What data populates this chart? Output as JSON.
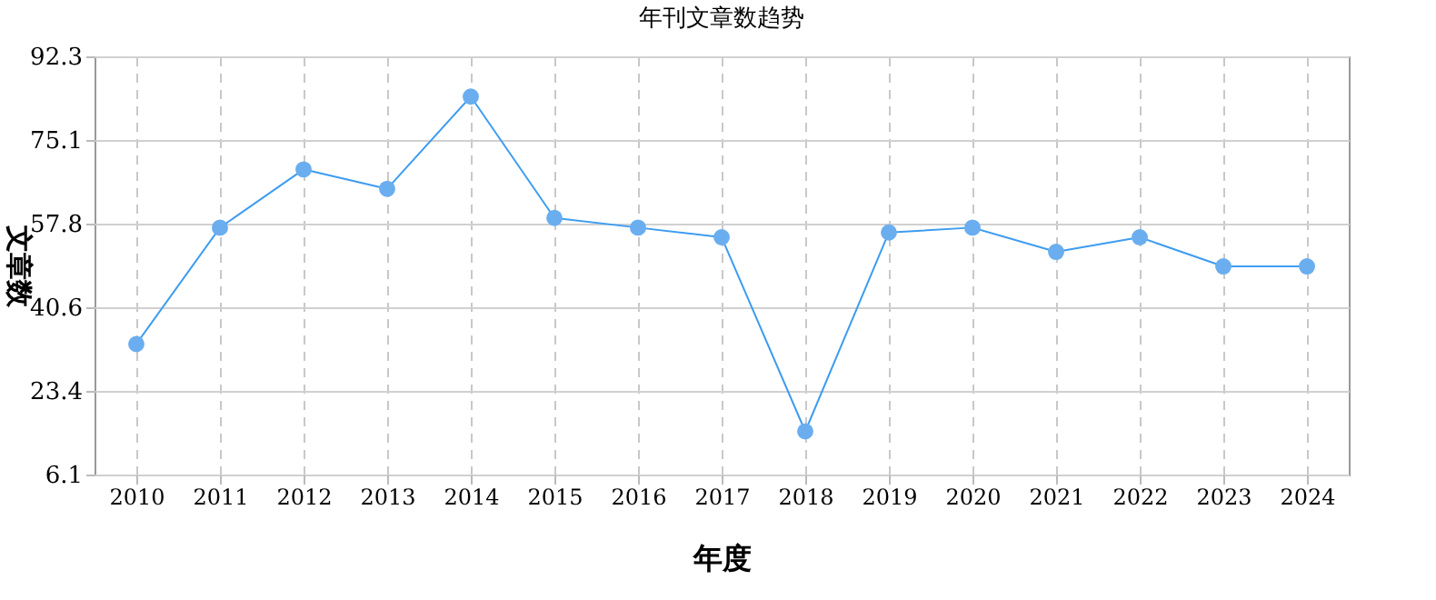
{
  "chart_data": {
    "type": "line",
    "title": "年刊文章数趋势",
    "xlabel": "年度",
    "ylabel": "文章数",
    "categories": [
      "2010",
      "2011",
      "2012",
      "2013",
      "2014",
      "2015",
      "2016",
      "2017",
      "2018",
      "2019",
      "2020",
      "2021",
      "2022",
      "2023",
      "2024"
    ],
    "series": [
      {
        "color": "#3d9cf0",
        "values": [
          33,
          57,
          69,
          65,
          84,
          59,
          57,
          55,
          15,
          56,
          57,
          52,
          55,
          49,
          49
        ]
      }
    ],
    "ylim": [
      6.1,
      92.3
    ],
    "yticks": [
      6.1,
      23.4,
      40.6,
      57.8,
      75.1,
      92.3
    ],
    "grid": true,
    "marker": "circle",
    "line_style": "solid",
    "legend": false
  }
}
